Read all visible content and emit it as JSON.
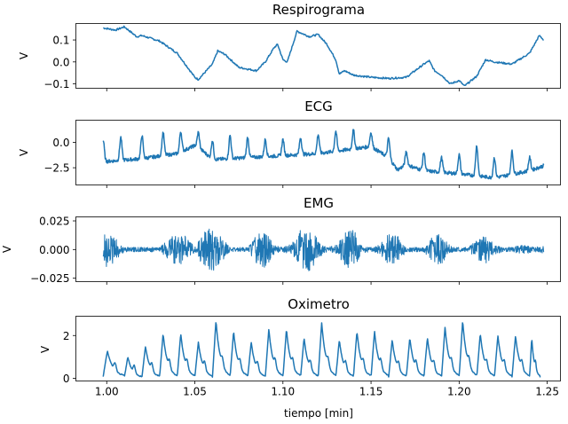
{
  "figure": {
    "xlabel": "tiempo [min]",
    "x_ticks": [
      "1.00",
      "1.05",
      "1.10",
      "1.15",
      "1.20",
      "1.25"
    ]
  },
  "chart_data": [
    {
      "type": "line",
      "title": "Respirograma",
      "ylabel": "V",
      "xlim": [
        0.9825,
        1.2575
      ],
      "ylim": [
        -0.12,
        0.175
      ],
      "y_ticks": [
        {
          "value": 0.1,
          "label": "0.1"
        },
        {
          "value": 0.0,
          "label": "0.0"
        },
        {
          "value": -0.1,
          "label": "−0.1"
        }
      ],
      "color": "#1f77b4",
      "x": [
        0.998,
        1.005,
        1.01,
        1.017,
        1.02,
        1.03,
        1.04,
        1.05,
        1.052,
        1.06,
        1.063,
        1.067,
        1.075,
        1.085,
        1.09,
        1.095,
        1.097,
        1.1,
        1.1025,
        1.108,
        1.115,
        1.12,
        1.125,
        1.13,
        1.132,
        1.135,
        1.14,
        1.15,
        1.16,
        1.17,
        1.18,
        1.183,
        1.186,
        1.19,
        1.195,
        1.2,
        1.203,
        1.21,
        1.215,
        1.22,
        1.23,
        1.24,
        1.2455,
        1.248
      ],
      "y": [
        0.155,
        0.145,
        0.16,
        0.115,
        0.12,
        0.095,
        0.04,
        -0.07,
        -0.08,
        -0.01,
        0.05,
        0.035,
        -0.025,
        -0.04,
        0.0,
        0.065,
        0.08,
        0.01,
        0.0,
        0.14,
        0.115,
        0.125,
        0.08,
        0.01,
        -0.055,
        -0.04,
        -0.06,
        -0.07,
        -0.075,
        -0.07,
        -0.01,
        0.005,
        -0.04,
        -0.06,
        -0.1,
        -0.085,
        -0.11,
        -0.065,
        0.01,
        0.0,
        -0.01,
        0.04,
        0.12,
        0.1
      ]
    },
    {
      "type": "line",
      "title": "ECG",
      "ylabel": "V",
      "xlim": [
        0.9825,
        1.2575
      ],
      "ylim": [
        -4.2,
        2.2
      ],
      "y_ticks": [
        {
          "value": 0.0,
          "label": "0.0"
        },
        {
          "value": -2.5,
          "label": "−2.5"
        }
      ],
      "color": "#1f77b4",
      "baseline_x": [
        0.998,
        1.02,
        1.04,
        1.05,
        1.055,
        1.06,
        1.08,
        1.1,
        1.12,
        1.15,
        1.16,
        1.165,
        1.17,
        1.18,
        1.2,
        1.22,
        1.24,
        1.248
      ],
      "baseline_y": [
        -1.9,
        -1.6,
        -1.1,
        -0.3,
        -0.9,
        -1.7,
        -1.5,
        -1.3,
        -1.1,
        -0.4,
        -1.5,
        -2.7,
        -2.2,
        -2.8,
        -3.1,
        -3.5,
        -2.8,
        -2.3
      ],
      "peaks_x": [
        0.998,
        1.008,
        1.02,
        1.032,
        1.042,
        1.052,
        1.06,
        1.07,
        1.08,
        1.09,
        1.1,
        1.11,
        1.12,
        1.13,
        1.14,
        1.15,
        1.16,
        1.17,
        1.18,
        1.19,
        1.2,
        1.21,
        1.22,
        1.23,
        1.24
      ],
      "peaks_y": [
        0.2,
        0.5,
        0.7,
        1.0,
        1.1,
        1.0,
        0.2,
        0.7,
        0.5,
        0.3,
        0.3,
        0.5,
        0.8,
        1.1,
        1.2,
        1.0,
        0.4,
        -0.9,
        -1.0,
        -1.5,
        -1.2,
        -0.3,
        -1.5,
        -0.9,
        -1.5
      ]
    },
    {
      "type": "line",
      "title": "EMG",
      "ylabel": "V",
      "xlim": [
        0.9825,
        1.2575
      ],
      "ylim": [
        -0.028,
        0.0285
      ],
      "y_ticks": [
        {
          "value": 0.025,
          "label": "0.025"
        },
        {
          "value": 0.0,
          "label": "0.000"
        },
        {
          "value": -0.025,
          "label": "−0.025"
        }
      ],
      "color": "#1f77b4",
      "envelope_x": [
        0.998,
        1.003,
        1.01,
        1.02,
        1.03,
        1.04,
        1.045,
        1.05,
        1.055,
        1.06,
        1.065,
        1.07,
        1.08,
        1.085,
        1.09,
        1.095,
        1.1,
        1.105,
        1.11,
        1.115,
        1.12,
        1.125,
        1.13,
        1.135,
        1.14,
        1.145,
        1.15,
        1.155,
        1.16,
        1.165,
        1.17,
        1.175,
        1.18,
        1.185,
        1.19,
        1.195,
        1.2,
        1.205,
        1.21,
        1.215,
        1.22,
        1.225,
        1.23,
        1.235,
        1.24,
        1.248
      ],
      "envelope_y": [
        0.016,
        0.013,
        0.002,
        0.002,
        0.002,
        0.015,
        0.012,
        0.002,
        0.015,
        0.021,
        0.011,
        0.002,
        0.002,
        0.013,
        0.016,
        0.004,
        0.002,
        0.005,
        0.017,
        0.02,
        0.009,
        0.002,
        0.004,
        0.015,
        0.018,
        0.003,
        0.002,
        0.004,
        0.015,
        0.012,
        0.002,
        0.002,
        0.002,
        0.012,
        0.014,
        0.003,
        0.002,
        0.002,
        0.008,
        0.013,
        0.004,
        0.002,
        0.002,
        0.004,
        0.003,
        0.003
      ]
    },
    {
      "type": "line",
      "title": "Oximetro",
      "ylabel": "V",
      "xlim": [
        0.9825,
        1.2575
      ],
      "ylim": [
        -0.12,
        2.9
      ],
      "y_ticks": [
        {
          "value": 2,
          "label": "2"
        },
        {
          "value": 0,
          "label": "0"
        }
      ],
      "color": "#1f77b4",
      "beats_x": [
        0.998,
        1.01,
        1.02,
        1.03,
        1.04,
        1.05,
        1.06,
        1.07,
        1.08,
        1.09,
        1.1,
        1.11,
        1.12,
        1.13,
        1.14,
        1.15,
        1.16,
        1.17,
        1.18,
        1.19,
        1.2,
        1.21,
        1.22,
        1.23,
        1.24,
        1.246
      ],
      "beats_peak": [
        1.3,
        1.0,
        1.5,
        2.1,
        2.1,
        1.7,
        2.7,
        2.2,
        1.7,
        2.3,
        2.3,
        1.9,
        2.6,
        1.8,
        2.2,
        2.2,
        1.8,
        1.9,
        1.9,
        2.4,
        2.7,
        2.1,
        2.0,
        2.0,
        1.9,
        0.8
      ],
      "beats_trough": [
        0.1,
        0.05,
        0.05,
        0.05,
        0.05,
        0.05,
        0.05,
        0.05,
        0.05,
        0.05,
        0.05,
        0.05,
        0.05,
        0.05,
        0.05,
        0.05,
        0.05,
        0.05,
        0.05,
        0.05,
        0.05,
        0.05,
        0.05,
        0.05,
        0.05,
        0.05
      ]
    }
  ]
}
